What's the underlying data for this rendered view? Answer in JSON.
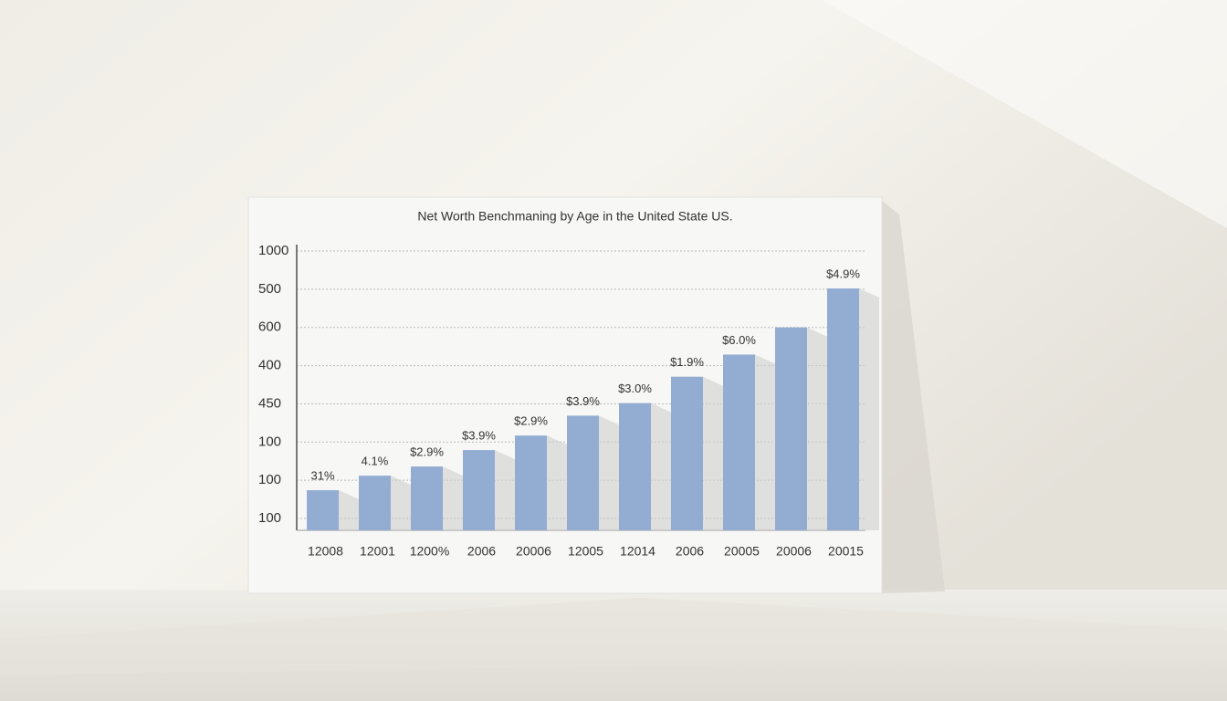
{
  "chart_data": {
    "type": "bar",
    "title": "Net Worth Benchmaning by Age in the United State US.",
    "categories": [
      "12008",
      "12001",
      "1200%",
      "2006",
      "20006",
      "12005",
      "12014",
      "2006",
      "20005",
      "20006",
      "20015"
    ],
    "values": [
      0.74,
      1.12,
      1.36,
      1.79,
      2.17,
      2.69,
      3.02,
      3.71,
      4.29,
      5.0,
      6.02
    ],
    "annotations": [
      "31%",
      "4.1%",
      "$2.9%",
      "$3.9%",
      "$2.9%",
      "$3.9%",
      "$3.0%",
      "$1.9%",
      "$6.0%",
      null,
      "$4.9%"
    ],
    "color": "#93acd2",
    "ylim": [
      -0.31,
      7
    ],
    "yticks": [
      {
        "value": 0,
        "label": "100"
      },
      {
        "value": 1,
        "label": "100"
      },
      {
        "value": 2,
        "label": "100"
      },
      {
        "value": 3,
        "label": "450"
      },
      {
        "value": 4,
        "label": "400"
      },
      {
        "value": 5,
        "label": "600"
      },
      {
        "value": 6,
        "label": "500"
      },
      {
        "value": 7,
        "label": "1000"
      }
    ],
    "grid": true
  }
}
